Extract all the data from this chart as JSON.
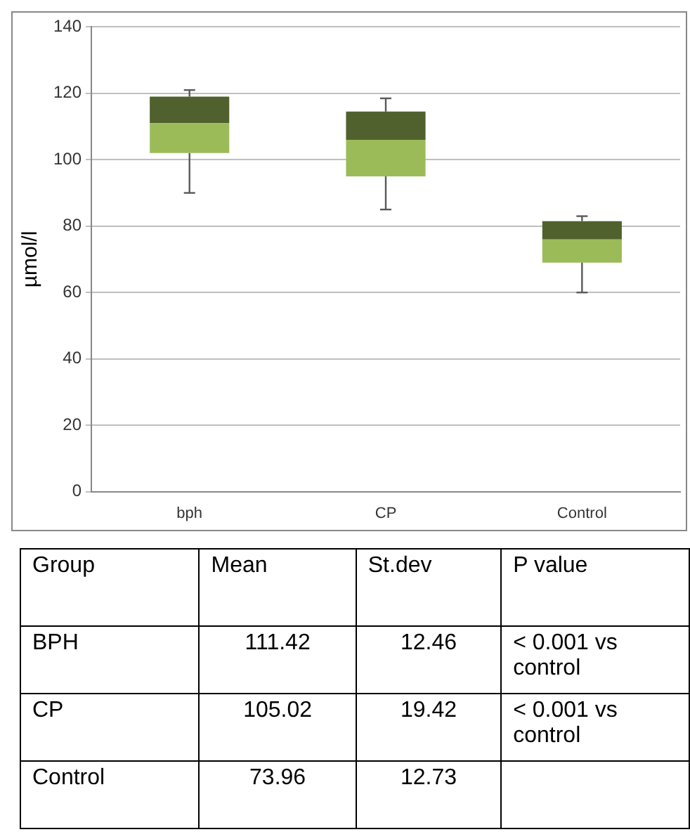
{
  "chart_data": [
    {
      "type": "box",
      "categories": [
        "bph",
        "CP",
        "Control"
      ],
      "ylabel": "µmol/l",
      "ylim": [
        0,
        140
      ],
      "yticks": [
        0,
        20,
        40,
        60,
        80,
        100,
        120,
        140
      ],
      "grid": "y",
      "legend": false,
      "colors": [
        "#9bbb59",
        "#9bbb59",
        "#9bbb59"
      ],
      "boxes": [
        {
          "low": 90,
          "q1": 102,
          "median": 111,
          "q3": 119,
          "high": 121
        },
        {
          "low": 85,
          "q1": 95,
          "median": 106,
          "q3": 114.5,
          "high": 118.5
        },
        {
          "low": 60,
          "q1": 69,
          "median": 76,
          "q3": 81.5,
          "high": 83
        }
      ]
    },
    {
      "type": "other",
      "annotations": [
        "Group",
        "Mean",
        "St.dev",
        "P value",
        "BPH",
        "111.42",
        "12.46",
        "< 0.001 vs control",
        "CP",
        "105.02",
        "19.42",
        "< 0.001 vs control",
        "Control",
        "73.96",
        "12.73",
        null
      ]
    }
  ]
}
